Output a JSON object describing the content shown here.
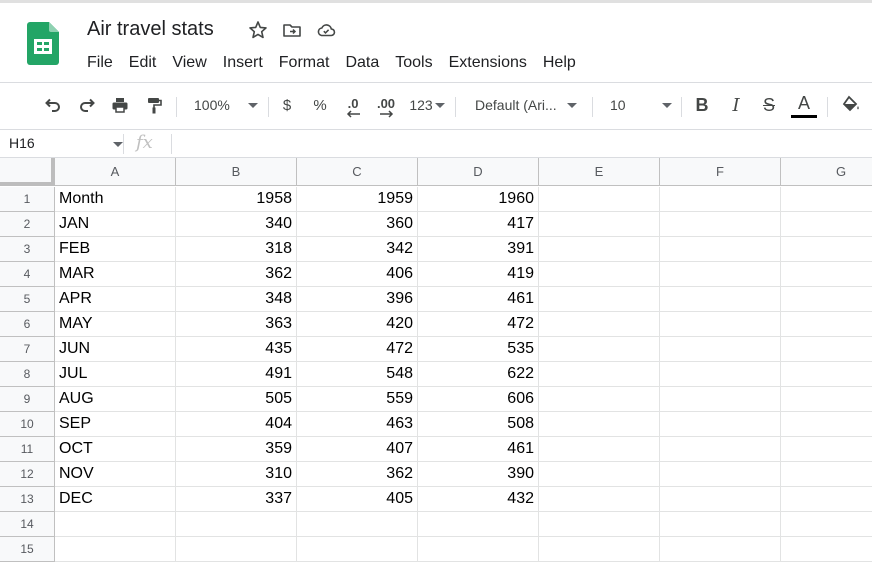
{
  "app": {
    "title": "Air travel stats",
    "icons": [
      "star-icon",
      "move-to-folder-icon",
      "cloud-saved-icon"
    ]
  },
  "menu": [
    "File",
    "Edit",
    "View",
    "Insert",
    "Format",
    "Data",
    "Tools",
    "Extensions",
    "Help"
  ],
  "toolbar": {
    "zoom": "100%",
    "currency": "$",
    "percent": "%",
    "decrease_decimal": ".0",
    "increase_decimal": ".00",
    "number_format": "123",
    "font_family": "Default (Ari...",
    "font_size": "10",
    "bold": "B",
    "italic": "I",
    "strikethrough": "S",
    "text_color": "A"
  },
  "formula_bar": {
    "cell_ref": "H16",
    "fx": "fx",
    "value": ""
  },
  "sheet": {
    "columns": [
      "A",
      "B",
      "C",
      "D",
      "E",
      "F",
      "G"
    ],
    "row_numbers": [
      "1",
      "2",
      "3",
      "4",
      "5",
      "6",
      "7",
      "8",
      "9",
      "10",
      "11",
      "12",
      "13",
      "14",
      "15"
    ],
    "rows": [
      [
        "Month",
        "1958",
        "1959",
        "1960"
      ],
      [
        "JAN",
        "340",
        "360",
        "417"
      ],
      [
        "FEB",
        "318",
        "342",
        "391"
      ],
      [
        "MAR",
        "362",
        "406",
        "419"
      ],
      [
        "APR",
        "348",
        "396",
        "461"
      ],
      [
        "MAY",
        "363",
        "420",
        "472"
      ],
      [
        "JUN",
        "435",
        "472",
        "535"
      ],
      [
        "JUL",
        "491",
        "548",
        "622"
      ],
      [
        "AUG",
        "505",
        "559",
        "606"
      ],
      [
        "SEP",
        "404",
        "463",
        "508"
      ],
      [
        "OCT",
        "359",
        "407",
        "461"
      ],
      [
        "NOV",
        "310",
        "362",
        "390"
      ],
      [
        "DEC",
        "337",
        "405",
        "432"
      ]
    ]
  },
  "colors": {
    "sheets_green": "#23a566",
    "header_bg": "#f8f9fa",
    "gridline": "#e2e3e3",
    "text_color_underline": "#000000"
  }
}
